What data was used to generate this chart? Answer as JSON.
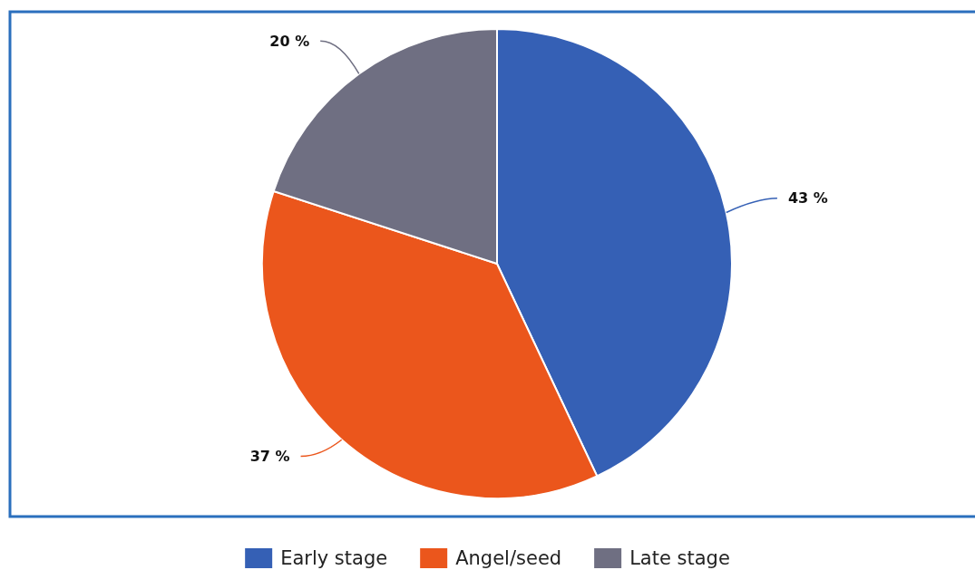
{
  "chart_data": {
    "type": "pie",
    "categories": [
      "Early stage",
      "Angel/seed",
      "Late stage"
    ],
    "values": [
      43,
      37,
      20
    ],
    "colors": [
      "#3560b5",
      "#eb561c",
      "#6f6f82"
    ],
    "value_labels": [
      "43 %",
      "37 %",
      "20 %"
    ],
    "legend": "bottom"
  }
}
